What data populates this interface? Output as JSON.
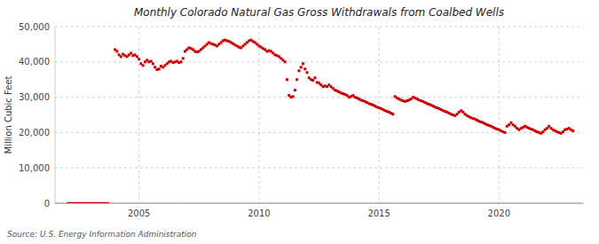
{
  "chart_data": {
    "type": "scatter",
    "title": "Monthly Colorado Natural Gas Gross Withdrawals from Coalbed Wells",
    "y_label": "Million Cubic Feet",
    "source": "Source: U.S. Energy Information Administration",
    "xlim": [
      2001.5,
      2023.5
    ],
    "ylim": [
      0,
      50000
    ],
    "xticks": [
      2005,
      2010,
      2015,
      2020
    ],
    "yticks": [
      0,
      {
        "value": 10000,
        "label": "10,000"
      },
      {
        "value": 20000,
        "label": "20,000"
      },
      {
        "value": 30000,
        "label": "30,000"
      },
      {
        "value": 40000,
        "label": "40,000"
      },
      {
        "value": 50000,
        "label": "50,000"
      }
    ],
    "grid": true,
    "series": [
      {
        "type": "line",
        "color": "#CC0000",
        "x": [
          2002.0,
          2003.75
        ],
        "values": [
          0,
          0
        ]
      },
      {
        "type": "scatter",
        "color": "#CC0000",
        "marker": "square",
        "x": [
          2004.0,
          2004.083,
          2004.167,
          2004.25,
          2004.333,
          2004.417,
          2004.5,
          2004.583,
          2004.667,
          2004.75,
          2004.833,
          2004.917,
          2005.0,
          2005.083,
          2005.167,
          2005.25,
          2005.333,
          2005.417,
          2005.5,
          2005.583,
          2005.667,
          2005.75,
          2005.833,
          2005.917,
          2006.0,
          2006.083,
          2006.167,
          2006.25,
          2006.333,
          2006.417,
          2006.5,
          2006.583,
          2006.667,
          2006.75,
          2006.833,
          2006.917,
          2007.0,
          2007.083,
          2007.167,
          2007.25,
          2007.333,
          2007.417,
          2007.5,
          2007.583,
          2007.667,
          2007.75,
          2007.833,
          2007.917,
          2008.0,
          2008.083,
          2008.167,
          2008.25,
          2008.333,
          2008.417,
          2008.5,
          2008.583,
          2008.667,
          2008.75,
          2008.833,
          2008.917,
          2009.0,
          2009.083,
          2009.167,
          2009.25,
          2009.333,
          2009.417,
          2009.5,
          2009.583,
          2009.667,
          2009.75,
          2009.833,
          2009.917,
          2010.0,
          2010.083,
          2010.167,
          2010.25,
          2010.333,
          2010.417,
          2010.5,
          2010.583,
          2010.667,
          2010.75,
          2010.833,
          2010.917,
          2011.0,
          2011.083,
          2011.167,
          2011.25,
          2011.333,
          2011.417,
          2011.5,
          2011.583,
          2011.667,
          2011.75,
          2011.833,
          2011.917,
          2012.0,
          2012.083,
          2012.167,
          2012.25,
          2012.333,
          2012.417,
          2012.5,
          2012.583,
          2012.667,
          2012.75,
          2012.833,
          2012.917,
          2013.0,
          2013.083,
          2013.167,
          2013.25,
          2013.333,
          2013.417,
          2013.5,
          2013.583,
          2013.667,
          2013.75,
          2013.833,
          2013.917,
          2014.0,
          2014.083,
          2014.167,
          2014.25,
          2014.333,
          2014.417,
          2014.5,
          2014.583,
          2014.667,
          2014.75,
          2014.833,
          2014.917,
          2015.0,
          2015.083,
          2015.167,
          2015.25,
          2015.333,
          2015.417,
          2015.5,
          2015.583,
          2015.667,
          2015.75,
          2015.833,
          2015.917,
          2016.0,
          2016.083,
          2016.167,
          2016.25,
          2016.333,
          2016.417,
          2016.5,
          2016.583,
          2016.667,
          2016.75,
          2016.833,
          2016.917,
          2017.0,
          2017.083,
          2017.167,
          2017.25,
          2017.333,
          2017.417,
          2017.5,
          2017.583,
          2017.667,
          2017.75,
          2017.833,
          2017.917,
          2018.0,
          2018.083,
          2018.167,
          2018.25,
          2018.333,
          2018.417,
          2018.5,
          2018.583,
          2018.667,
          2018.75,
          2018.833,
          2018.917,
          2019.0,
          2019.083,
          2019.167,
          2019.25,
          2019.333,
          2019.417,
          2019.5,
          2019.583,
          2019.667,
          2019.75,
          2019.833,
          2019.917,
          2020.0,
          2020.083,
          2020.167,
          2020.25,
          2020.333,
          2020.417,
          2020.5,
          2020.583,
          2020.667,
          2020.75,
          2020.833,
          2020.917,
          2021.0,
          2021.083,
          2021.167,
          2021.25,
          2021.333,
          2021.417,
          2021.5,
          2021.583,
          2021.667,
          2021.75,
          2021.833,
          2021.917,
          2022.0,
          2022.083,
          2022.167,
          2022.25,
          2022.333,
          2022.417,
          2022.5,
          2022.583,
          2022.667,
          2022.75,
          2022.833,
          2022.917,
          2023.0,
          2023.083
        ],
        "values": [
          43500,
          43000,
          42000,
          41500,
          42200,
          41800,
          41500,
          42000,
          42500,
          41800,
          42000,
          41500,
          40800,
          39500,
          39000,
          40000,
          40500,
          40000,
          40200,
          39500,
          38500,
          37800,
          38000,
          38800,
          38500,
          39000,
          39500,
          40000,
          40200,
          39800,
          40000,
          40200,
          39800,
          40000,
          41000,
          43000,
          43500,
          44000,
          43800,
          43500,
          43000,
          42800,
          43000,
          43500,
          44000,
          44500,
          45000,
          45500,
          45200,
          45000,
          44800,
          44500,
          45000,
          45500,
          46000,
          46200,
          46000,
          45800,
          45500,
          45200,
          44800,
          44500,
          44200,
          44000,
          44500,
          45000,
          45500,
          46000,
          46200,
          45800,
          45500,
          45000,
          44500,
          44200,
          43800,
          43500,
          43000,
          43200,
          43000,
          42500,
          42000,
          41800,
          41500,
          41000,
          40500,
          40000,
          35000,
          30500,
          30000,
          30200,
          32000,
          35000,
          37500,
          38500,
          39500,
          38000,
          37000,
          35500,
          35000,
          34800,
          35500,
          34200,
          34000,
          33500,
          33000,
          33200,
          33000,
          33500,
          33000,
          32500,
          32000,
          31800,
          31500,
          31200,
          31000,
          30800,
          30500,
          30000,
          30200,
          30500,
          30000,
          29800,
          29500,
          29200,
          29000,
          28800,
          28500,
          28200,
          28000,
          27800,
          27500,
          27200,
          27000,
          26800,
          26500,
          26200,
          26000,
          25800,
          25500,
          25200,
          30200,
          29800,
          29500,
          29200,
          29000,
          28800,
          29000,
          29200,
          29500,
          30000,
          29800,
          29500,
          29200,
          29000,
          28800,
          28500,
          28200,
          28000,
          27800,
          27500,
          27200,
          27000,
          26800,
          26500,
          26200,
          26000,
          25800,
          25500,
          25200,
          25000,
          24800,
          25200,
          25800,
          26200,
          25800,
          25200,
          24800,
          24500,
          24200,
          24000,
          23800,
          23500,
          23200,
          23000,
          22800,
          22500,
          22200,
          22000,
          21800,
          21500,
          21200,
          21000,
          20800,
          20500,
          20200,
          20000,
          21800,
          22200,
          22800,
          22200,
          21800,
          21200,
          20800,
          21200,
          21500,
          21800,
          21500,
          21200,
          21000,
          20800,
          20500,
          20200,
          20000,
          19800,
          20200,
          20800,
          21200,
          21800,
          21200,
          20800,
          20500,
          20200,
          20000,
          19800,
          20200,
          20800,
          21000,
          21200,
          20800,
          20500
        ]
      }
    ]
  }
}
